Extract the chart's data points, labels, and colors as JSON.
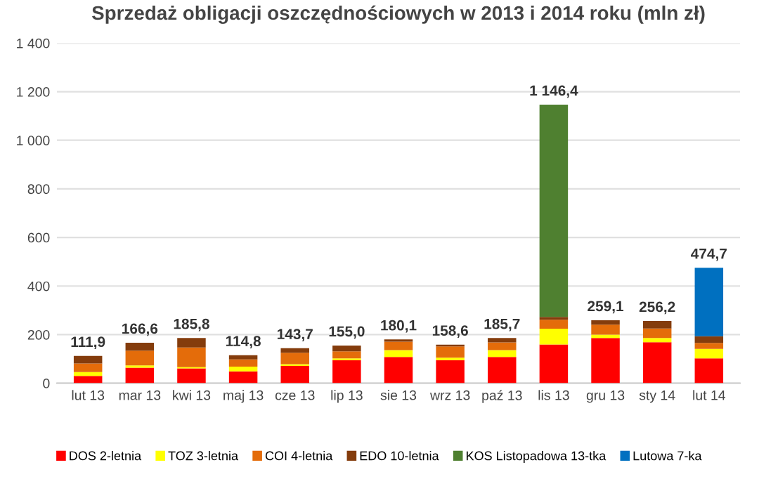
{
  "chart_data": {
    "type": "bar",
    "stacked": true,
    "title": "Sprzedaż obligacji oszczędnościowych w 2013 i 2014 roku (mln zł)",
    "categories": [
      "lut 13",
      "mar 13",
      "kwi 13",
      "maj 13",
      "cze 13",
      "lip 13",
      "sie 13",
      "wrz 13",
      "paź 13",
      "lis 13",
      "gru 13",
      "sty 14",
      "lut 14"
    ],
    "series": [
      {
        "name": "DOS 2-letnia",
        "color": "#ff0000",
        "values": [
          30,
          64,
          61,
          49,
          71,
          95,
          108,
          95,
          108,
          159,
          186,
          169,
          102
        ]
      },
      {
        "name": "TOZ 3-letnia",
        "color": "#ffff00",
        "values": [
          16,
          9,
          5,
          19,
          7,
          7,
          28,
          10,
          28,
          65,
          14,
          17,
          39
        ]
      },
      {
        "name": "COI 4-letnia",
        "color": "#e46c0a",
        "values": [
          35,
          61,
          81,
          30,
          47,
          29,
          35,
          46,
          32,
          37,
          41,
          39,
          25
        ]
      },
      {
        "name": "EDO 10-letnia",
        "color": "#843c0c",
        "values": [
          31,
          32.6,
          39,
          17,
          19,
          24,
          9,
          7.6,
          18,
          12,
          18,
          31,
          27
        ]
      },
      {
        "name": "KOS Listopadowa 13-tka",
        "color": "#4f8030",
        "values": [
          0,
          0,
          0,
          0,
          0,
          0,
          0,
          0,
          0,
          873.4,
          0,
          0,
          0
        ]
      },
      {
        "name": "Lutowa 7-ka",
        "color": "#0070c0",
        "values": [
          0,
          0,
          0,
          0,
          0,
          0,
          0,
          0,
          0,
          0,
          0,
          0,
          282
        ]
      }
    ],
    "totals": [
      "111,9",
      "166,6",
      "185,8",
      "114,8",
      "143,7",
      "155,0",
      "180,1",
      "158,6",
      "185,7",
      "1 146,4",
      "259,1",
      "256,2",
      "474,7"
    ],
    "ylim": [
      0,
      1400
    ],
    "yticks": [
      0,
      200,
      400,
      600,
      800,
      {
        "value": 1000,
        "label": "1 000"
      },
      {
        "value": 1200,
        "label": "1 200"
      },
      {
        "value": 1400,
        "label": "1 400"
      }
    ],
    "grid": "y",
    "legend": "bottom"
  }
}
